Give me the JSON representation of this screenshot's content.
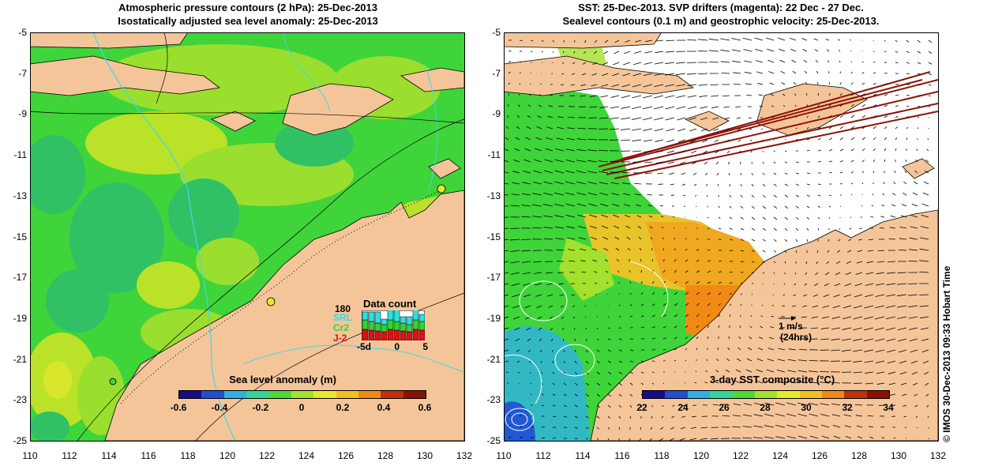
{
  "left_panel": {
    "title_line1": "Atmospheric pressure contours (2 hPa): 25-Dec-2013",
    "title_line2": "Isostatically adjusted sea level anomaly: 25-Dec-2013",
    "colorbar": {
      "title": "Sea level anomaly (m)",
      "labels": [
        "-0.6",
        "-0.4",
        "-0.2",
        "0",
        "0.2",
        "0.4",
        "0.6"
      ],
      "colors": [
        "#1a0a8c",
        "#1f4fd6",
        "#2fb0e6",
        "#2fd6a0",
        "#4ed93a",
        "#a4e02e",
        "#e8e82a",
        "#f0c020",
        "#f08a14",
        "#c0300e",
        "#8c1208"
      ]
    },
    "data_count": {
      "title": "Data count",
      "max_label": "180",
      "satellites": [
        {
          "name": "SRL",
          "color": "#2fe0e0"
        },
        {
          "name": "Cr2",
          "color": "#2fd62f"
        },
        {
          "name": "J-2",
          "color": "#e01010"
        }
      ],
      "axis_labels": [
        "-5d",
        "0",
        "5"
      ]
    }
  },
  "right_panel": {
    "title_line1": "SST: 25-Dec-2013. SVP drifters (magenta): 22 Dec - 27 Dec.",
    "title_line2": "Sealevel contours (0.1 m) and geostrophic velocity: 25-Dec-2013.",
    "colorbar": {
      "title": "3-day SST composite (°C)",
      "labels": [
        "22",
        "24",
        "26",
        "28",
        "30",
        "32",
        "34"
      ],
      "colors": [
        "#1a0a8c",
        "#1f4fd6",
        "#2fb0e6",
        "#2fd6a0",
        "#4ed93a",
        "#a4e02e",
        "#e8e82a",
        "#f0c020",
        "#f08a14",
        "#c0300e",
        "#8c1208"
      ]
    },
    "scale_arrow": {
      "label": "1 m/s",
      "sublabel": "(24hrs)"
    }
  },
  "axes": {
    "y_labels": [
      "-5",
      "-7",
      "-9",
      "-11",
      "-13",
      "-15",
      "-17",
      "-19",
      "-21",
      "-23",
      "-25"
    ],
    "x_labels": [
      "110",
      "112",
      "114",
      "116",
      "118",
      "120",
      "122",
      "124",
      "126",
      "128",
      "130",
      "132"
    ]
  },
  "copyright": "© IMOS 30-Dec-2013 09:33 Hobart Time",
  "colors": {
    "land": "#f5c59a",
    "ocean_mid": "#3fd43a",
    "ocean_high": "#b8e22e",
    "ocean_low": "#2fbf6a",
    "sst_warm": "#f0a820"
  }
}
